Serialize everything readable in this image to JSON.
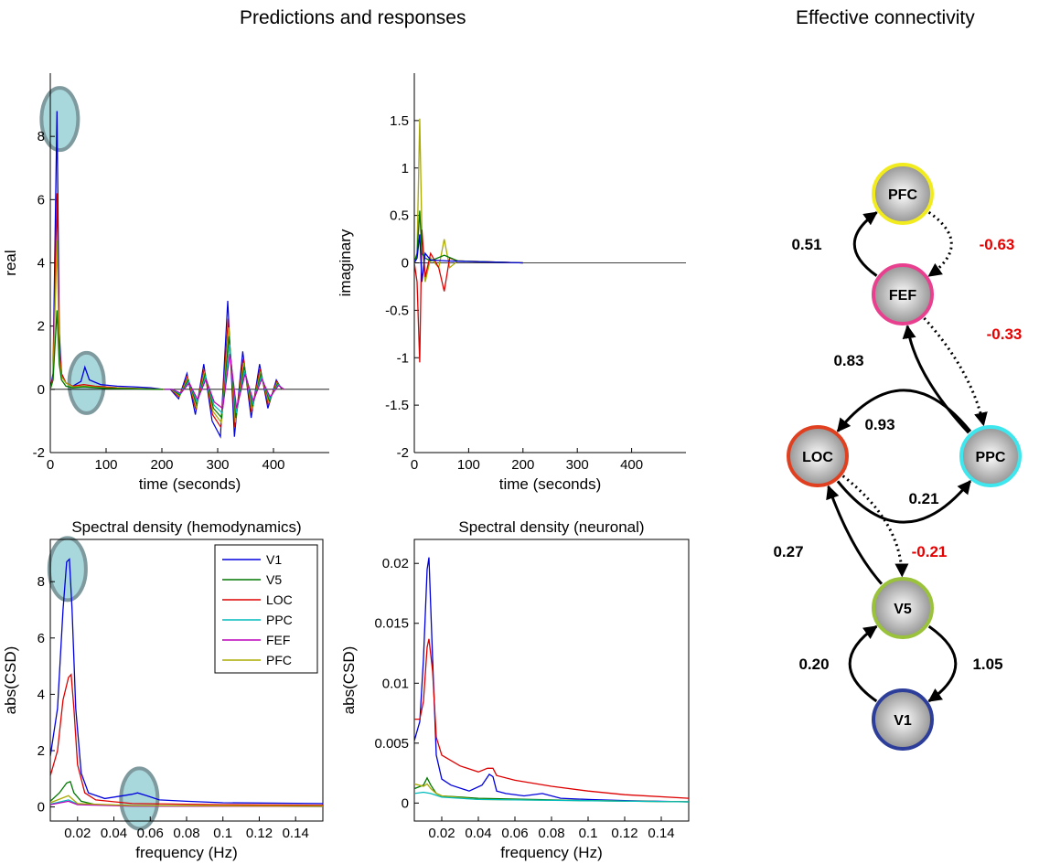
{
  "titles": {
    "main": "Predictions and responses",
    "connectivity": "Effective connectivity"
  },
  "colors": {
    "V1": "#0000dd",
    "V5": "#007700",
    "LOC": "#dd0000",
    "PPC": "#00bbbb",
    "FEF": "#bb00bb",
    "PFC": "#aaaa00",
    "highlight_fill": "#a8d8dc",
    "highlight_stroke": "#7f9a9e",
    "negative_label": "#e60000"
  },
  "chart_data": [
    {
      "type": "line",
      "name": "real",
      "xlabel": "time (seconds)",
      "ylabel": "real",
      "xlim": [
        0,
        500
      ],
      "ylim": [
        -2,
        10
      ],
      "xticks": [
        0,
        100,
        200,
        300,
        400
      ],
      "yticks": [
        -2,
        0,
        2,
        4,
        6,
        8
      ],
      "grid": false,
      "series": [
        {
          "color_key": "V1",
          "x": [
            0,
            5,
            12,
            16,
            20,
            28,
            40,
            55,
            62,
            70,
            90,
            120,
            150,
            180,
            200
          ],
          "y": [
            0,
            0.5,
            8.8,
            1.8,
            0.5,
            0.2,
            0.1,
            0.25,
            0.7,
            0.3,
            0.15,
            0.1,
            0.08,
            0.05,
            0
          ]
        },
        {
          "color_key": "LOC",
          "x": [
            0,
            5,
            12,
            16,
            20,
            28,
            40,
            60,
            80,
            120,
            200
          ],
          "y": [
            0,
            0.4,
            6.2,
            1.4,
            0.5,
            0.2,
            0.1,
            0.15,
            0.1,
            0.05,
            0
          ]
        },
        {
          "color_key": "PFC",
          "x": [
            0,
            5,
            12,
            16,
            20,
            28,
            40,
            60,
            100,
            200
          ],
          "y": [
            0,
            0.3,
            4.7,
            1.0,
            0.4,
            0.2,
            0.08,
            0.1,
            0.05,
            0
          ]
        },
        {
          "color_key": "V5",
          "x": [
            0,
            5,
            12,
            16,
            20,
            28,
            40,
            60,
            100,
            200
          ],
          "y": [
            0,
            0.3,
            2.5,
            0.8,
            0.3,
            0.1,
            0.05,
            0.08,
            0.03,
            0
          ]
        }
      ],
      "oscillation": {
        "x": [
          200,
          215,
          230,
          245,
          260,
          275,
          290,
          305,
          318,
          330,
          345,
          360,
          375,
          390,
          405,
          415
        ],
        "y": [
          0,
          0,
          -0.3,
          0.5,
          -0.8,
          0.8,
          -1.0,
          -1.5,
          2.8,
          -1.5,
          1.2,
          -0.9,
          0.8,
          -0.6,
          0.3,
          0
        ]
      }
    },
    {
      "type": "line",
      "name": "imaginary",
      "xlabel": "time (seconds)",
      "ylabel": "imaginary",
      "xlim": [
        0,
        500
      ],
      "ylim": [
        -2,
        2
      ],
      "xticks": [
        0,
        100,
        200,
        300,
        400
      ],
      "yticks": [
        -2,
        -1.5,
        -1,
        -0.5,
        0,
        0.5,
        1,
        1.5
      ],
      "grid": false,
      "series": [
        {
          "color_key": "PFC",
          "x": [
            0,
            5,
            10,
            14,
            20,
            30,
            45,
            55,
            65,
            80,
            200
          ],
          "y": [
            0,
            0.1,
            1.52,
            0.3,
            -0.2,
            0.05,
            -0.05,
            0.25,
            -0.05,
            0.02,
            0
          ]
        },
        {
          "color_key": "LOC",
          "x": [
            0,
            5,
            10,
            14,
            20,
            30,
            45,
            55,
            65,
            80,
            200
          ],
          "y": [
            0,
            -0.2,
            -1.05,
            0.35,
            -0.15,
            0.1,
            -0.05,
            -0.3,
            0.05,
            0.02,
            0
          ]
        },
        {
          "color_key": "V5",
          "x": [
            0,
            5,
            10,
            14,
            20,
            30,
            55,
            80,
            200
          ],
          "y": [
            0,
            0.1,
            0.55,
            0.1,
            0.05,
            0.02,
            0.08,
            0.02,
            0
          ]
        },
        {
          "color_key": "V1",
          "x": [
            0,
            5,
            10,
            14,
            20,
            30,
            60,
            200
          ],
          "y": [
            0,
            0.05,
            0.3,
            -0.2,
            0.1,
            0.03,
            0.02,
            0
          ]
        }
      ]
    },
    {
      "type": "line",
      "title": "Spectral density (hemodynamics)",
      "xlabel": "frequency (Hz)",
      "ylabel": "abs(CSD)",
      "xlim": [
        0.005,
        0.155
      ],
      "ylim": [
        -0.5,
        9.5
      ],
      "xticks": [
        0.02,
        0.04,
        0.06,
        0.08,
        0.1,
        0.12,
        0.14
      ],
      "xtick_labels": [
        "0.02",
        "0.04",
        "0.06",
        "0.08",
        "0.1",
        "0.12",
        "0.14"
      ],
      "yticks": [
        0,
        2,
        4,
        6,
        8
      ],
      "legend": [
        "V1",
        "V5",
        "LOC",
        "PPC",
        "FEF",
        "PFC"
      ],
      "legend_position": "top-right",
      "series": [
        {
          "name": "V1",
          "x": [
            0.005,
            0.009,
            0.012,
            0.014,
            0.0155,
            0.017,
            0.019,
            0.022,
            0.026,
            0.035,
            0.045,
            0.05,
            0.053,
            0.058,
            0.065,
            0.08,
            0.1,
            0.155
          ],
          "y": [
            1.8,
            3.5,
            7,
            8.7,
            8.8,
            7,
            3.5,
            1.2,
            0.5,
            0.3,
            0.4,
            0.45,
            0.5,
            0.4,
            0.25,
            0.2,
            0.15,
            0.12
          ]
        },
        {
          "name": "V5",
          "x": [
            0.005,
            0.01,
            0.014,
            0.016,
            0.018,
            0.022,
            0.03,
            0.05,
            0.1,
            0.155
          ],
          "y": [
            0.2,
            0.5,
            0.85,
            0.9,
            0.5,
            0.2,
            0.08,
            0.05,
            0.03,
            0.02
          ]
        },
        {
          "name": "LOC",
          "x": [
            0.005,
            0.009,
            0.012,
            0.015,
            0.0165,
            0.018,
            0.02,
            0.024,
            0.03,
            0.05,
            0.1,
            0.155
          ],
          "y": [
            1.1,
            2.0,
            3.8,
            4.6,
            4.7,
            3.5,
            1.5,
            0.5,
            0.25,
            0.12,
            0.08,
            0.06
          ]
        },
        {
          "name": "PPC",
          "x": [
            0.005,
            0.015,
            0.02,
            0.05,
            0.155
          ],
          "y": [
            0.1,
            0.25,
            0.1,
            0.04,
            0.02
          ]
        },
        {
          "name": "FEF",
          "x": [
            0.005,
            0.015,
            0.02,
            0.05,
            0.155
          ],
          "y": [
            0.08,
            0.2,
            0.08,
            0.03,
            0.02
          ]
        },
        {
          "name": "PFC",
          "x": [
            0.005,
            0.015,
            0.02,
            0.05,
            0.155
          ],
          "y": [
            0.15,
            0.4,
            0.12,
            0.05,
            0.03
          ]
        }
      ]
    },
    {
      "type": "line",
      "title": "Spectral density (neuronal)",
      "xlabel": "frequency (Hz)",
      "ylabel": "abs(CSD)",
      "xlim": [
        0.005,
        0.155
      ],
      "ylim": [
        -0.0015,
        0.022
      ],
      "xticks": [
        0.02,
        0.04,
        0.06,
        0.08,
        0.1,
        0.12,
        0.14
      ],
      "xtick_labels": [
        "0.02",
        "0.04",
        "0.06",
        "0.08",
        "0.1",
        "0.12",
        "0.14"
      ],
      "yticks": [
        0,
        0.005,
        0.01,
        0.015,
        0.02
      ],
      "ytick_labels": [
        "0",
        "0.005",
        "0.01",
        "0.015",
        "0.02"
      ],
      "series": [
        {
          "color_key": "V1",
          "x": [
            0.005,
            0.008,
            0.01,
            0.012,
            0.013,
            0.015,
            0.017,
            0.02,
            0.025,
            0.035,
            0.042,
            0.046,
            0.048,
            0.05,
            0.055,
            0.065,
            0.075,
            0.085,
            0.1,
            0.12,
            0.155
          ],
          "y": [
            0.0052,
            0.0068,
            0.012,
            0.0195,
            0.0205,
            0.012,
            0.004,
            0.002,
            0.0015,
            0.001,
            0.0015,
            0.0024,
            0.0022,
            0.001,
            0.0008,
            0.0006,
            0.0008,
            0.0004,
            0.0003,
            0.0002,
            0.0001
          ]
        },
        {
          "color_key": "LOC",
          "x": [
            0.005,
            0.008,
            0.01,
            0.012,
            0.013,
            0.015,
            0.017,
            0.02,
            0.03,
            0.04,
            0.045,
            0.048,
            0.05,
            0.06,
            0.08,
            0.1,
            0.12,
            0.155
          ],
          "y": [
            0.007,
            0.007,
            0.0085,
            0.013,
            0.0137,
            0.011,
            0.0055,
            0.004,
            0.0031,
            0.0026,
            0.0029,
            0.0029,
            0.0023,
            0.0019,
            0.0014,
            0.001,
            0.0007,
            0.0004
          ]
        },
        {
          "color_key": "V5",
          "x": [
            0.005,
            0.01,
            0.012,
            0.014,
            0.017,
            0.02,
            0.04,
            0.1,
            0.155
          ],
          "y": [
            0.0012,
            0.0015,
            0.0021,
            0.0015,
            0.0008,
            0.0006,
            0.0004,
            0.0002,
            0.0001
          ]
        },
        {
          "color_key": "PFC",
          "x": [
            0.005,
            0.01,
            0.012,
            0.014,
            0.017,
            0.02,
            0.04,
            0.1,
            0.155
          ],
          "y": [
            0.0016,
            0.0014,
            0.0016,
            0.0012,
            0.0008,
            0.0006,
            0.0003,
            0.0002,
            0.0001
          ]
        },
        {
          "color_key": "PPC",
          "x": [
            0.005,
            0.01,
            0.014,
            0.02,
            0.04,
            0.155
          ],
          "y": [
            0.0008,
            0.0009,
            0.0008,
            0.0005,
            0.0003,
            0.0001
          ]
        }
      ]
    }
  ],
  "connectivity": {
    "nodes": [
      {
        "id": "PFC",
        "label": "PFC",
        "ring": "#f2ec1f"
      },
      {
        "id": "FEF",
        "label": "FEF",
        "ring": "#e8408f"
      },
      {
        "id": "LOC",
        "label": "LOC",
        "ring": "#e04020"
      },
      {
        "id": "PPC",
        "label": "PPC",
        "ring": "#3ee6ee"
      },
      {
        "id": "V5",
        "label": "V5",
        "ring": "#9ac23a"
      },
      {
        "id": "V1",
        "label": "V1",
        "ring": "#2c3d9a"
      }
    ],
    "edges": [
      {
        "from": "FEF",
        "to": "PFC",
        "weight": "0.51",
        "style": "solid"
      },
      {
        "from": "PFC",
        "to": "FEF",
        "weight": "-0.63",
        "style": "dotted"
      },
      {
        "from": "FEF",
        "to": "PPC",
        "weight": "-0.33",
        "style": "dotted"
      },
      {
        "from": "PPC",
        "to": "FEF",
        "weight": "0.83",
        "style": "solid"
      },
      {
        "from": "PPC",
        "to": "LOC",
        "weight": "0.93",
        "style": "solid"
      },
      {
        "from": "LOC",
        "to": "PPC",
        "weight": "0.21",
        "style": "solid"
      },
      {
        "from": "LOC",
        "to": "V5",
        "weight": "-0.21",
        "style": "dotted"
      },
      {
        "from": "V5",
        "to": "LOC",
        "weight": "0.27",
        "style": "solid"
      },
      {
        "from": "V1",
        "to": "V5",
        "weight": "0.20",
        "style": "solid"
      },
      {
        "from": "V5",
        "to": "V1",
        "weight": "1.05",
        "style": "solid"
      }
    ]
  }
}
